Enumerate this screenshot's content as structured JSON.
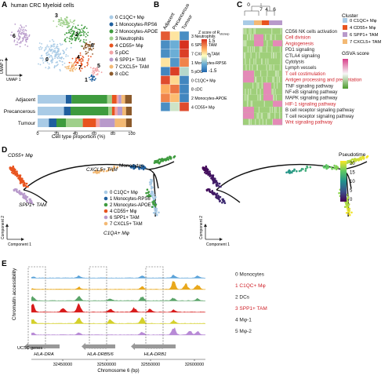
{
  "panels": {
    "A": {
      "letter": "A",
      "title": "human CRC Myeloid cells",
      "umap_x_label": "UMAP 1",
      "umap_y_label": "UMAP 2",
      "cluster_labels_on_plot": [
        "6",
        "3",
        "0",
        "2",
        "4",
        "8",
        "7",
        "5",
        "1"
      ],
      "legend": [
        {
          "idx": "0",
          "name": "C1QC+ Mφ",
          "color": "#a9cbe6"
        },
        {
          "idx": "1",
          "name": "Monocytes-RPS6",
          "color": "#1f5f9e"
        },
        {
          "idx": "2",
          "name": "Monocytes-APOE",
          "color": "#3e9b3e"
        },
        {
          "idx": "3",
          "name": "Neutrophils",
          "color": "#9fd08b"
        },
        {
          "idx": "4",
          "name": "CD55+ Mφ",
          "color": "#e8541f"
        },
        {
          "idx": "5",
          "name": "pDC",
          "color": "#f3a3a6"
        },
        {
          "idx": "6",
          "name": "SPP1+ TAM",
          "color": "#b89acb"
        },
        {
          "idx": "7",
          "name": "CXCL5+ TAM",
          "color": "#f3b974"
        },
        {
          "idx": "8",
          "name": "cDC",
          "color": "#8c5a2b"
        }
      ],
      "bar_rows": [
        "Adjacent",
        "Precancerous",
        "Tumour"
      ],
      "bar_ticks": [
        "0",
        "20",
        "40",
        "60",
        "80",
        "100"
      ],
      "bar_xlabel": "Cell type proportion (%)"
    },
    "B": {
      "letter": "B",
      "columns": [
        "Adjacent",
        "Precancerous",
        "Tumour"
      ],
      "rows": [
        "3 Neutrophils",
        "6 SPP1+ TAM",
        "7 CXCL5+ TAM",
        "1 Monocytes-RPS6",
        "5 pDC",
        "0 C1QC+ Mφ",
        "8 cDC",
        "2 Monocytes-APOE",
        "4 CD55+ Mφ"
      ],
      "legend_title": "Z score of R",
      "legend_sub": "obs/exp",
      "legend_ticks": [
        "1.5",
        "0",
        "-1.5"
      ]
    },
    "C": {
      "letter": "C",
      "col_groups": [
        "0",
        "7",
        "4",
        "6"
      ],
      "pathways": [
        {
          "name": "CD56 NK cells activation",
          "red": false
        },
        {
          "name": "Cell division",
          "red": true
        },
        {
          "name": "Angiogenesis",
          "red": true
        },
        {
          "name": "PD1 signaling",
          "red": false
        },
        {
          "name": "CTLA4 signaling",
          "red": false
        },
        {
          "name": "Cytolysis",
          "red": false
        },
        {
          "name": "Lymph vessels",
          "red": false
        },
        {
          "name": "T cell costimulation",
          "red": true
        },
        {
          "name": "Antigen processing and presentation",
          "red": true
        },
        {
          "name": "TNF signaling pathway",
          "red": false
        },
        {
          "name": "NF-κB signaling pathway",
          "red": false
        },
        {
          "name": "MAPK signaling pathway",
          "red": false
        },
        {
          "name": "HIF-1 signaling pathway",
          "red": true
        },
        {
          "name": "B cell receptor signaling pathway",
          "red": false
        },
        {
          "name": "T cell receptor signaling pathway",
          "red": false
        },
        {
          "name": "Wnt signaling pathway",
          "red": true
        }
      ],
      "cluster_title": "Cluster",
      "cluster_legend": [
        {
          "name": "0 C1QC+ Mφ",
          "color": "#a9cbe6"
        },
        {
          "name": "4 CD55+ Mφ",
          "color": "#e8541f"
        },
        {
          "name": "6 SPP1+ TAM",
          "color": "#b89acb"
        },
        {
          "name": "7 CXCL5+ TAM",
          "color": "#f3b974"
        }
      ],
      "gsva_title": "GSVA score"
    },
    "D": {
      "letter": "D",
      "labels": {
        "cd55": "CD55+ Mφ",
        "cxcl5": "CXCL5+ TAM",
        "monocytes": "Monocytes",
        "spp1": "SPP1+ TAM",
        "c1qa": "C1QA+ Mφ"
      },
      "comp1": "Component 1",
      "comp2": "Component 2",
      "legend": [
        {
          "idx": "0",
          "name": "C1QC+ Mφ",
          "color": "#a9cbe6"
        },
        {
          "idx": "1",
          "name": "Monocytes-RPS6",
          "color": "#1f5f9e"
        },
        {
          "idx": "2",
          "name": "Monocytes-APOE",
          "color": "#3e9b3e"
        },
        {
          "idx": "4",
          "name": "CD55+ Mφ",
          "color": "#e8541f"
        },
        {
          "idx": "6",
          "name": "SPP1+ TAM",
          "color": "#b89acb"
        },
        {
          "idx": "7",
          "name": "CXCL5+ TAM",
          "color": "#f3b974"
        }
      ],
      "pseudotime_title": "Pseudotime",
      "pseudotime_ticks": [
        "20",
        "15",
        "10",
        "5",
        "0"
      ]
    },
    "E": {
      "letter": "E",
      "ylabel": "Chromatin accessibility",
      "tracks": [
        {
          "name": "0 Monocytes",
          "color": "#5ba3d9",
          "red": false
        },
        {
          "name": "1 C1QC+ Mφ",
          "color": "#e9a81c",
          "red": true
        },
        {
          "name": "2 DCs",
          "color": "#5aa469",
          "red": false
        },
        {
          "name": "3 SPP1+ TAM",
          "color": "#d81b1b",
          "red": true
        },
        {
          "name": "4 Mφ-1",
          "color": "#d4d02a",
          "red": false
        },
        {
          "name": "5 Mφ-2",
          "color": "#b88ad6",
          "red": false
        }
      ],
      "ucsc_label": "UCSC genes",
      "genes": [
        "HLA-DRA",
        "HLA-DRB5/6",
        "HLA-DRB1"
      ],
      "xticks": [
        "32450000",
        "32500000",
        "32550000",
        "32600000"
      ],
      "xlabel": "Chromosome 6 (bp)"
    }
  }
}
